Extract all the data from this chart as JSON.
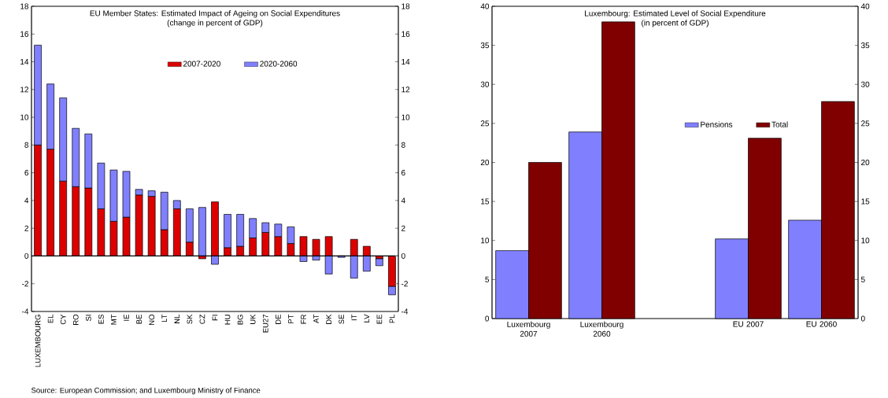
{
  "chart_data": [
    {
      "type": "bar",
      "stacked": true,
      "title": "EU Member States: Estimated Impact of Ageing on Social Expenditures",
      "subtitle": "(change in percent of GDP)",
      "categories": [
        "LUXEMBOURG",
        "EL",
        "CY",
        "RO",
        "SI",
        "ES",
        "MT",
        "IE",
        "BE",
        "NO",
        "LT",
        "NL",
        "SK",
        "CZ",
        "FI",
        "HU",
        "BG",
        "UK",
        "EU27",
        "DE",
        "PT",
        "FR",
        "AT",
        "DK",
        "SE",
        "IT",
        "LV",
        "EE",
        "PL"
      ],
      "series": [
        {
          "name": "2007-2020",
          "color": "#dd0000",
          "values": [
            8.0,
            7.7,
            5.4,
            5.0,
            4.9,
            3.4,
            2.5,
            2.8,
            4.4,
            4.3,
            1.9,
            3.4,
            1.0,
            -0.2,
            3.9,
            0.6,
            0.7,
            1.3,
            1.7,
            1.4,
            0.9,
            1.4,
            1.2,
            1.4,
            0.0,
            1.2,
            0.7,
            -0.2,
            -2.2
          ]
        },
        {
          "name": "2020-2060",
          "color": "#8080ff",
          "values": [
            7.2,
            4.7,
            6.0,
            4.2,
            3.9,
            3.3,
            3.7,
            3.3,
            0.4,
            0.4,
            2.7,
            0.6,
            2.4,
            3.5,
            -0.6,
            2.4,
            2.3,
            1.4,
            0.7,
            0.9,
            1.2,
            -0.4,
            -0.3,
            -1.3,
            -0.1,
            -1.6,
            -1.1,
            -0.5,
            -0.6
          ]
        }
      ],
      "ylim": [
        -4,
        18
      ],
      "yticks": [
        -4,
        -2,
        0,
        2,
        4,
        6,
        8,
        10,
        12,
        14,
        16,
        18
      ],
      "y2lim": [
        -4,
        18
      ],
      "y2ticks": [
        -4,
        -2,
        0,
        2,
        4,
        6,
        8,
        10,
        12,
        14,
        16,
        18
      ],
      "legend": "top",
      "annotations": [
        "Source: European Commission; and Luxembourg Ministry of Finance"
      ]
    },
    {
      "type": "bar",
      "title": "Luxembourg: Estimated Level of Social Expenditure",
      "subtitle": "(in percent of GDP)",
      "categories": [
        "Luxembourg 2007",
        "Luxembourg 2060",
        null,
        "EU 2007",
        "EU 2060"
      ],
      "series": [
        {
          "name": "Pensions",
          "color": "#8080ff",
          "values": [
            8.7,
            23.9,
            null,
            10.2,
            12.6
          ]
        },
        {
          "name": "Total",
          "color": "#800000",
          "values": [
            20.0,
            38.0,
            null,
            23.1,
            27.8
          ]
        }
      ],
      "ylim": [
        0,
        40
      ],
      "yticks": [
        0,
        5,
        10,
        15,
        20,
        25,
        30,
        35,
        40
      ],
      "y2lim": [
        0,
        40
      ],
      "y2ticks": [
        0,
        5,
        10,
        15,
        20,
        25,
        30,
        35,
        40
      ],
      "legend": "right"
    }
  ]
}
